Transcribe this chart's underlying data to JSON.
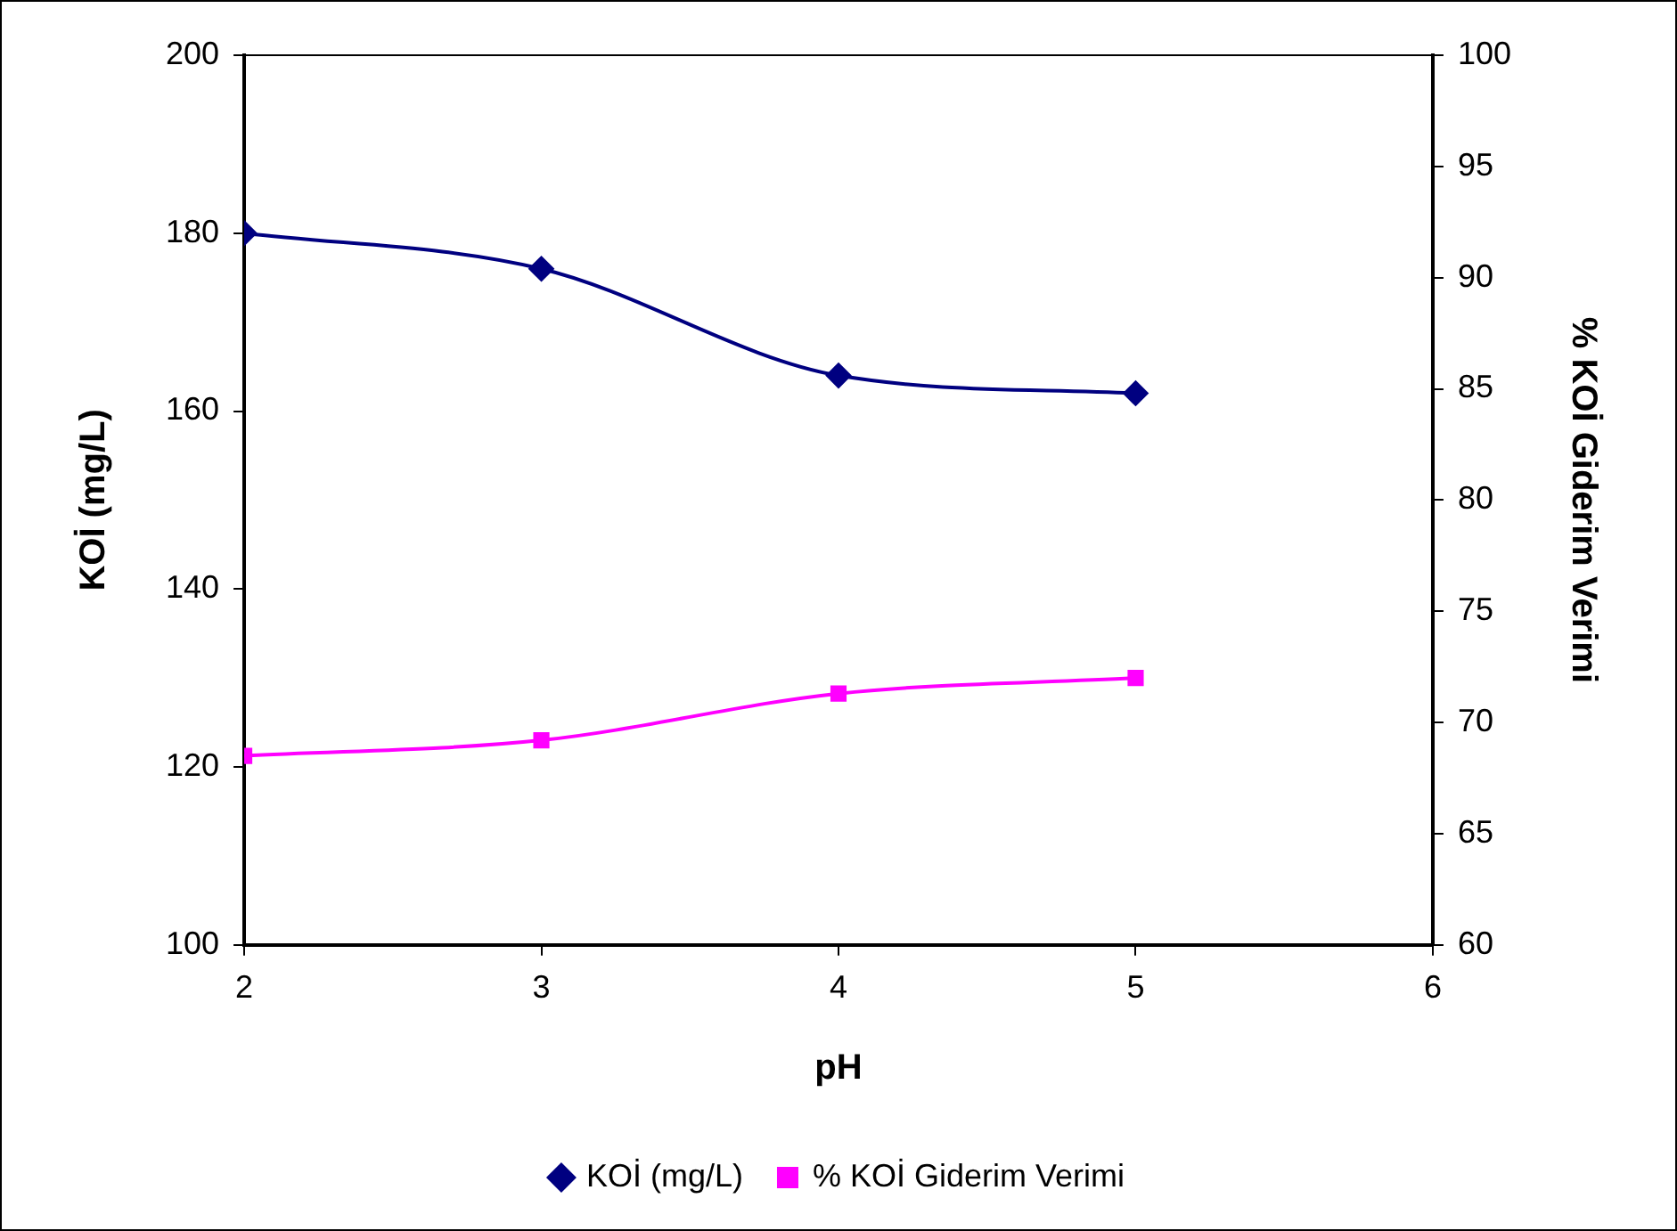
{
  "chart_data": {
    "type": "line",
    "xlabel": "pH",
    "ylabel": "KOİ (mg/L)",
    "y2label": "% KOİ Giderim Verimi",
    "x": [
      2,
      3,
      4,
      5
    ],
    "series": [
      {
        "name": "KOİ (mg/L)",
        "color": "#000080",
        "values": [
          180,
          176,
          164,
          162
        ],
        "marker": "diamond"
      },
      {
        "name": "% KOİ Giderim Verimi",
        "color": "#ff00ff",
        "values": [
          68.5,
          69.2,
          71.3,
          72.0
        ],
        "axis": "y2",
        "marker": "square"
      }
    ],
    "xlim": [
      2,
      6
    ],
    "xticks": [
      2,
      3,
      4,
      5,
      6
    ],
    "ylim": [
      100,
      200
    ],
    "yticks": [
      100,
      120,
      140,
      160,
      180,
      200
    ],
    "y2lim": [
      60,
      100
    ],
    "y2ticks": [
      60,
      65,
      70,
      75,
      80,
      85,
      90,
      95,
      100
    ],
    "grid": false,
    "legend": "bottom",
    "line_style": "solid"
  }
}
